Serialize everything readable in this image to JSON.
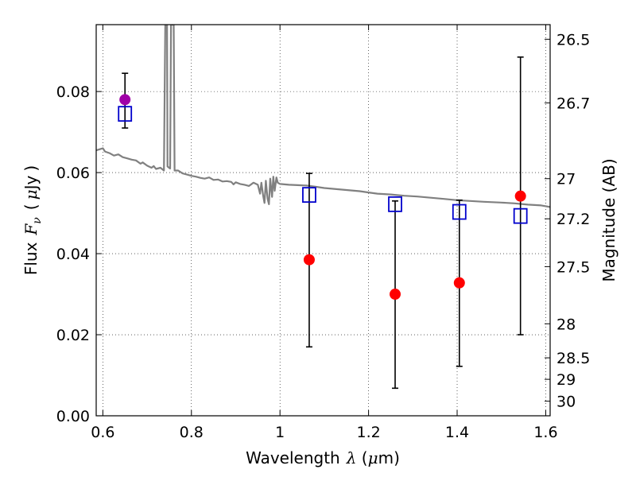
{
  "chart_data": {
    "type": "scatter",
    "xlabel": {
      "prefix": "Wavelength",
      "symbol": "λ",
      "unit_open": " (",
      "unit_mu": "μ",
      "unit_rest": "m)"
    },
    "ylabel": {
      "prefix": "Flux",
      "symbol": "F",
      "sub": "ν",
      "paren_open": "(",
      "unit_mu": "μ",
      "unit_rest": "Jy",
      "paren_close": ")"
    },
    "y2label": "Magnitude (AB)",
    "xlim": [
      0.585,
      1.61
    ],
    "ylim": [
      0.0,
      0.0965
    ],
    "grid": true,
    "x_ticks": [
      {
        "value": 0.6,
        "label": "0.6"
      },
      {
        "value": 0.8,
        "label": "0.8"
      },
      {
        "value": 1.0,
        "label": "1"
      },
      {
        "value": 1.2,
        "label": "1.2"
      },
      {
        "value": 1.4,
        "label": "1.4"
      },
      {
        "value": 1.6,
        "label": "1.6"
      }
    ],
    "y_ticks": [
      {
        "value": 0.0,
        "label": "0.00"
      },
      {
        "value": 0.02,
        "label": "0.02"
      },
      {
        "value": 0.04,
        "label": "0.04"
      },
      {
        "value": 0.06,
        "label": "0.06"
      },
      {
        "value": 0.08,
        "label": "0.08"
      }
    ],
    "y2_ticks": [
      {
        "flux": 0.0929,
        "label": "26.5"
      },
      {
        "flux": 0.0772,
        "label": "26.7"
      },
      {
        "flux": 0.0585,
        "label": "27"
      },
      {
        "flux": 0.0486,
        "label": "27.2"
      },
      {
        "flux": 0.0368,
        "label": "27.5"
      },
      {
        "flux": 0.0227,
        "label": "28"
      },
      {
        "flux": 0.0143,
        "label": "28.5"
      },
      {
        "flux": 0.009,
        "label": "29"
      },
      {
        "flux": 0.0036,
        "label": "30"
      }
    ],
    "series": [
      {
        "kind": "observed",
        "color": "#ff0000",
        "points": [
          {
            "x": 0.65,
            "y": 0.078,
            "yerr_low": 0.071,
            "yerr_high": 0.0845
          },
          {
            "x": 1.066,
            "y": 0.0385,
            "yerr_low": 0.017,
            "yerr_high": 0.0598
          },
          {
            "x": 1.26,
            "y": 0.03,
            "yerr_low": 0.0068,
            "yerr_high": 0.053
          },
          {
            "x": 1.405,
            "y": 0.0328,
            "yerr_low": 0.0122,
            "yerr_high": 0.0532
          },
          {
            "x": 1.543,
            "y": 0.0542,
            "yerr_low": 0.02,
            "yerr_high": 0.0885
          }
        ]
      },
      {
        "kind": "model",
        "color": "#0000cc",
        "points": [
          {
            "x": 0.65,
            "y": 0.0745
          },
          {
            "x": 1.066,
            "y": 0.0545
          },
          {
            "x": 1.26,
            "y": 0.0522
          },
          {
            "x": 1.405,
            "y": 0.0503
          },
          {
            "x": 1.543,
            "y": 0.0493
          }
        ]
      },
      {
        "kind": "spectrum",
        "color": "#808080",
        "points": [
          [
            0.585,
            0.0655
          ],
          [
            0.6,
            0.066
          ],
          [
            0.605,
            0.0652
          ],
          [
            0.615,
            0.0648
          ],
          [
            0.625,
            0.0642
          ],
          [
            0.635,
            0.0645
          ],
          [
            0.645,
            0.0638
          ],
          [
            0.655,
            0.0635
          ],
          [
            0.665,
            0.0632
          ],
          [
            0.675,
            0.063
          ],
          [
            0.685,
            0.0622
          ],
          [
            0.69,
            0.0625
          ],
          [
            0.7,
            0.0617
          ],
          [
            0.71,
            0.0612
          ],
          [
            0.715,
            0.0616
          ],
          [
            0.72,
            0.0609
          ],
          [
            0.73,
            0.0612
          ],
          [
            0.738,
            0.0605
          ],
          [
            0.741,
            0.0965
          ],
          [
            0.745,
            0.0965
          ],
          [
            0.746,
            0.0615
          ],
          [
            0.752,
            0.061
          ],
          [
            0.754,
            0.0965
          ],
          [
            0.76,
            0.0965
          ],
          [
            0.762,
            0.0605
          ],
          [
            0.77,
            0.0605
          ],
          [
            0.78,
            0.0598
          ],
          [
            0.79,
            0.0595
          ],
          [
            0.8,
            0.0592
          ],
          [
            0.81,
            0.059
          ],
          [
            0.82,
            0.0587
          ],
          [
            0.83,
            0.0585
          ],
          [
            0.84,
            0.0588
          ],
          [
            0.85,
            0.0582
          ],
          [
            0.86,
            0.0583
          ],
          [
            0.87,
            0.0578
          ],
          [
            0.88,
            0.0579
          ],
          [
            0.89,
            0.0577
          ],
          [
            0.895,
            0.0571
          ],
          [
            0.9,
            0.0576
          ],
          [
            0.91,
            0.0572
          ],
          [
            0.92,
            0.057
          ],
          [
            0.93,
            0.0567
          ],
          [
            0.94,
            0.0575
          ],
          [
            0.95,
            0.057
          ],
          [
            0.955,
            0.0548
          ],
          [
            0.958,
            0.0575
          ],
          [
            0.962,
            0.0543
          ],
          [
            0.965,
            0.0525
          ],
          [
            0.968,
            0.058
          ],
          [
            0.972,
            0.0535
          ],
          [
            0.975,
            0.0522
          ],
          [
            0.978,
            0.0585
          ],
          [
            0.982,
            0.054
          ],
          [
            0.985,
            0.059
          ],
          [
            0.988,
            0.0555
          ],
          [
            0.992,
            0.0588
          ],
          [
            0.995,
            0.0575
          ],
          [
            1.0,
            0.0572
          ],
          [
            1.02,
            0.057
          ],
          [
            1.04,
            0.0569
          ],
          [
            1.06,
            0.0568
          ],
          [
            1.08,
            0.0565
          ],
          [
            1.1,
            0.0562
          ],
          [
            1.12,
            0.056
          ],
          [
            1.15,
            0.0557
          ],
          [
            1.18,
            0.0554
          ],
          [
            1.2,
            0.0551
          ],
          [
            1.22,
            0.0548
          ],
          [
            1.25,
            0.0546
          ],
          [
            1.28,
            0.0543
          ],
          [
            1.31,
            0.0541
          ],
          [
            1.34,
            0.0538
          ],
          [
            1.37,
            0.0535
          ],
          [
            1.4,
            0.0532
          ],
          [
            1.43,
            0.053
          ],
          [
            1.46,
            0.0528
          ],
          [
            1.5,
            0.0526
          ],
          [
            1.53,
            0.0524
          ],
          [
            1.56,
            0.0521
          ],
          [
            1.59,
            0.0519
          ],
          [
            1.61,
            0.0515
          ]
        ]
      }
    ]
  }
}
